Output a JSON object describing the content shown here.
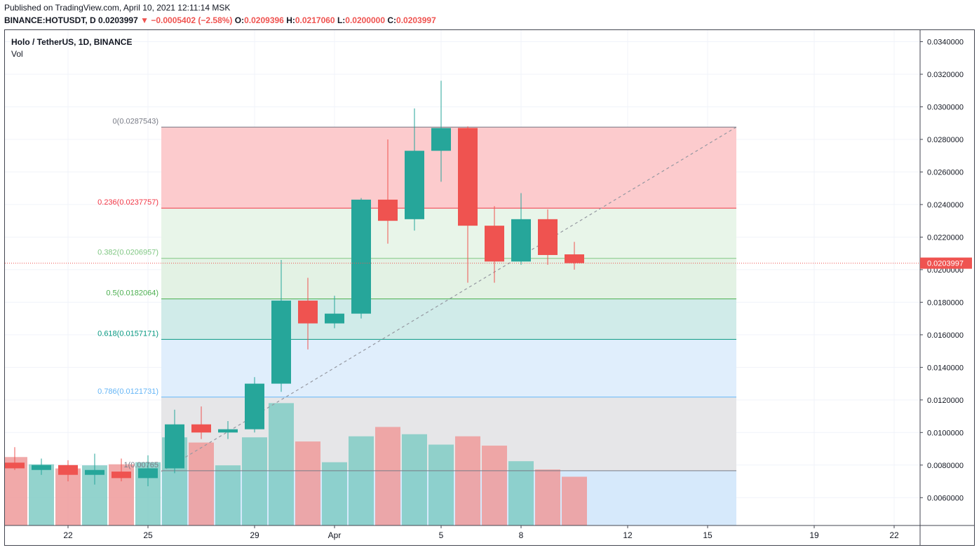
{
  "header": {
    "published": "Published on TradingView.com, April 10, 2021 12:11:14 MSK",
    "symbol": "BINANCE:HOTUSDT, D",
    "last": "0.0203997",
    "change_arrow": "▼",
    "change": "−0.0005402 (−2.58%)",
    "o_label": "O:",
    "o_value": "0.0209396",
    "h_label": "H:",
    "h_value": "0.0217060",
    "l_label": "L:",
    "l_value": "0.0200000",
    "c_label": "C:",
    "c_value": "0.0203997"
  },
  "legend": {
    "title": "Holo / TetherUS, 1D, BINANCE",
    "volume": "Vol"
  },
  "chart_data": {
    "type": "candlestick",
    "colors": {
      "up": "#26a69a",
      "down": "#ef5350",
      "vol_up": "#80cbc4",
      "vol_down": "#ef9a9a"
    },
    "y_axis": {
      "min": 0.0047,
      "max": 0.0348,
      "ticks": [
        "0.0060000",
        "0.0080000",
        "0.0100000",
        "0.0120000",
        "0.0140000",
        "0.0160000",
        "0.0180000",
        "0.0200000",
        "0.0220000",
        "0.0240000",
        "0.0260000",
        "0.0280000",
        "0.0300000",
        "0.0320000",
        "0.0340000"
      ]
    },
    "x_axis": {
      "ticks": [
        {
          "day": 22,
          "label": "22"
        },
        {
          "day": 25,
          "label": "25"
        },
        {
          "day": 29,
          "label": "29"
        },
        {
          "day": 32,
          "label": "Apr"
        },
        {
          "day": 36,
          "label": "5"
        },
        {
          "day": 39,
          "label": "8"
        },
        {
          "day": 43,
          "label": "12"
        },
        {
          "day": 46,
          "label": "15"
        },
        {
          "day": 50,
          "label": "19"
        },
        {
          "day": 53,
          "label": "22"
        }
      ]
    },
    "last_price": {
      "value": 0.0203997,
      "label": "0.0203997"
    },
    "candles": [
      {
        "day": 20,
        "open": 0.00815,
        "high": 0.0091,
        "low": 0.0077,
        "close": 0.0078,
        "volume": 0.66
      },
      {
        "day": 21,
        "open": 0.0077,
        "high": 0.0084,
        "low": 0.0074,
        "close": 0.008,
        "volume": 0.59
      },
      {
        "day": 22,
        "open": 0.008,
        "high": 0.0083,
        "low": 0.007,
        "close": 0.0074,
        "volume": 0.55
      },
      {
        "day": 23,
        "open": 0.0074,
        "high": 0.0087,
        "low": 0.0068,
        "close": 0.0077,
        "volume": 0.58
      },
      {
        "day": 24,
        "open": 0.0076,
        "high": 0.0084,
        "low": 0.007,
        "close": 0.0072,
        "volume": 0.59
      },
      {
        "day": 25,
        "open": 0.0072,
        "high": 0.0086,
        "low": 0.0067,
        "close": 0.0078,
        "volume": 0.61
      },
      {
        "day": 26,
        "open": 0.0078,
        "high": 0.0114,
        "low": 0.0075,
        "close": 0.0105,
        "volume": 0.85
      },
      {
        "day": 27,
        "open": 0.0105,
        "high": 0.0116,
        "low": 0.0096,
        "close": 0.01,
        "volume": 0.8
      },
      {
        "day": 28,
        "open": 0.01,
        "high": 0.0107,
        "low": 0.0096,
        "close": 0.0102,
        "volume": 0.58
      },
      {
        "day": 29,
        "open": 0.0102,
        "high": 0.0134,
        "low": 0.01,
        "close": 0.013,
        "volume": 0.85
      },
      {
        "day": 30,
        "open": 0.013,
        "high": 0.0206,
        "low": 0.0125,
        "close": 0.0181,
        "volume": 1.18
      },
      {
        "day": 31,
        "open": 0.0181,
        "high": 0.0195,
        "low": 0.0151,
        "close": 0.0167,
        "volume": 0.81
      },
      {
        "day": 32,
        "open": 0.0167,
        "high": 0.0184,
        "low": 0.0164,
        "close": 0.0173,
        "volume": 0.61
      },
      {
        "day": 33,
        "open": 0.0173,
        "high": 0.0244,
        "low": 0.017,
        "close": 0.0243,
        "volume": 0.86
      },
      {
        "day": 34,
        "open": 0.0243,
        "high": 0.028,
        "low": 0.0216,
        "close": 0.023,
        "volume": 0.95
      },
      {
        "day": 35,
        "open": 0.0231,
        "high": 0.0299,
        "low": 0.0224,
        "close": 0.0273,
        "volume": 0.88
      },
      {
        "day": 36,
        "open": 0.0273,
        "high": 0.0316,
        "low": 0.0254,
        "close": 0.0287,
        "volume": 0.78
      },
      {
        "day": 37,
        "open": 0.0287,
        "high": 0.0288,
        "low": 0.0192,
        "close": 0.0227,
        "volume": 0.86
      },
      {
        "day": 38,
        "open": 0.0227,
        "high": 0.0239,
        "low": 0.0192,
        "close": 0.0205,
        "volume": 0.77
      },
      {
        "day": 39,
        "open": 0.0205,
        "high": 0.0247,
        "low": 0.0203,
        "close": 0.0231,
        "volume": 0.62
      },
      {
        "day": 40,
        "open": 0.0231,
        "high": 0.0237,
        "low": 0.0203,
        "close": 0.0209,
        "volume": 0.54
      },
      {
        "day": 41,
        "open": 0.0209396,
        "high": 0.021706,
        "low": 0.02,
        "close": 0.0203997,
        "volume": 0.47
      }
    ],
    "fibonacci": {
      "start_day": 26,
      "end_day": 47,
      "trend_line": {
        "from_day": 26,
        "from_price": 0.0076,
        "to_day": 47,
        "to_price": 0.0287543
      },
      "levels": [
        {
          "label": "0(0.0287543)",
          "value": 0.0287543,
          "line": "#787b86",
          "fill": "#fccbcd",
          "label_color": "#787b86"
        },
        {
          "label": "0.236(0.0237757)",
          "value": 0.0237757,
          "line": "#f23645",
          "fill": "#e8f5e9",
          "label_color": "#f23645"
        },
        {
          "label": "0.382(0.0206957)",
          "value": 0.0206957,
          "line": "#81c784",
          "fill": "#e3f2e4",
          "label_color": "#81c784"
        },
        {
          "label": "0.5(0.0182064)",
          "value": 0.0182064,
          "line": "#4caf50",
          "fill": "#d0ebe9",
          "label_color": "#4caf50"
        },
        {
          "label": "0.618(0.0157171)",
          "value": 0.0157171,
          "line": "#089981",
          "fill": "#e0eefc",
          "label_color": "#089981"
        },
        {
          "label": "0.786(0.0121731)",
          "value": 0.0121731,
          "line": "#64b5f6",
          "fill": "#e6e6e8",
          "label_color": "#64b5f6"
        },
        {
          "label": "1(0.00765",
          "value": 0.00765,
          "line": "#787b86",
          "fill": "#d6e9fb",
          "label_color": "#787b86"
        }
      ]
    }
  }
}
